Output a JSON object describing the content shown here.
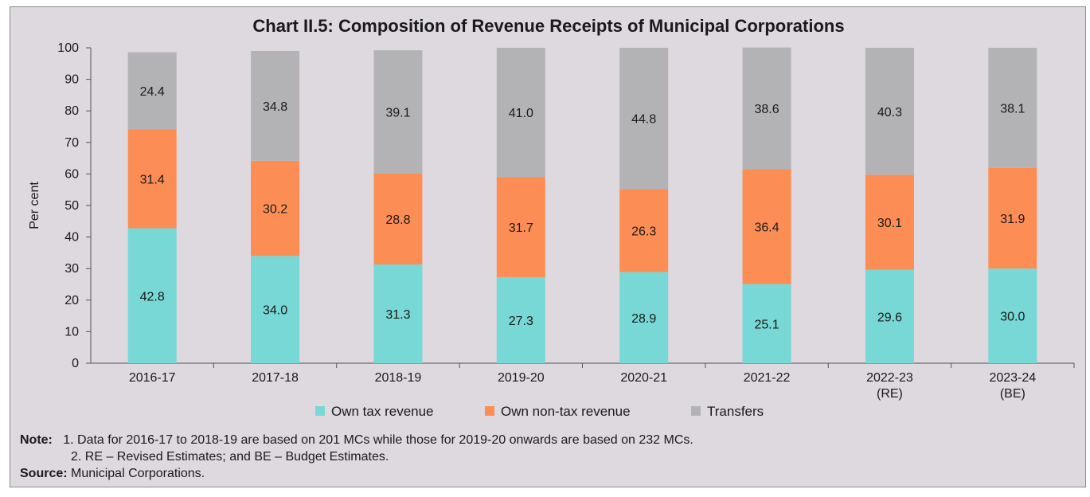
{
  "title": "Chart II.5: Composition of Revenue Receipts of Municipal Corporations",
  "colors": {
    "own_tax": "#77d8d5",
    "own_non_tax": "#fc8e55",
    "transfers": "#b3b3b6",
    "background": "#ded8df"
  },
  "chart_data": {
    "type": "bar",
    "stacked": true,
    "categories": [
      "2016-17",
      "2017-18",
      "2018-19",
      "2019-20",
      "2020-21",
      "2021-22",
      "2022-23\n(RE)",
      "2023-24\n(BE)"
    ],
    "series": [
      {
        "name": "Own tax revenue",
        "values": [
          42.8,
          34.0,
          31.3,
          27.3,
          28.9,
          25.1,
          29.6,
          30.0
        ]
      },
      {
        "name": "Own non-tax revenue",
        "values": [
          31.4,
          30.2,
          28.8,
          31.7,
          26.3,
          36.4,
          30.1,
          31.9
        ]
      },
      {
        "name": "Transfers",
        "values": [
          24.4,
          34.8,
          39.1,
          41.0,
          44.8,
          38.6,
          40.3,
          38.1
        ]
      }
    ],
    "ylabel": "Per cent",
    "ylim": [
      0,
      100
    ],
    "yticks": [
      0,
      10,
      20,
      30,
      40,
      50,
      60,
      70,
      80,
      90,
      100
    ],
    "legend_position": "bottom"
  },
  "notes": {
    "note_label": "Note:",
    "note_1": "1. Data for 2016-17 to 2018-19 are based on 201 MCs while those for 2019-20 onwards are based on 232 MCs.",
    "note_2": "2. RE – Revised Estimates; and BE – Budget Estimates.",
    "source_label": "Source:",
    "source_text": "Municipal Corporations."
  }
}
